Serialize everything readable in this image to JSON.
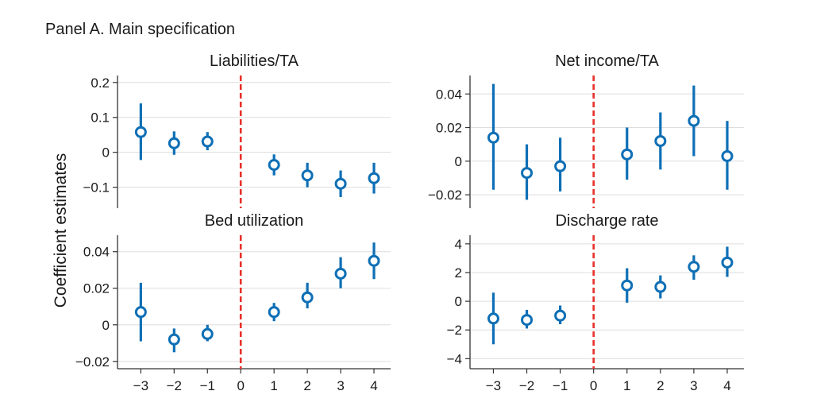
{
  "panel_title": "Panel A. Main specification",
  "y_axis_label": "Coefficient estimates",
  "colors": {
    "marker": "#0e6fb5",
    "threshold": "#e8302a",
    "grid": "#dddddd",
    "axis": "#333333"
  },
  "chart_data": [
    {
      "type": "scatter",
      "title": "Liabilities/TA",
      "x": [
        -3,
        -2,
        -1,
        1,
        2,
        3,
        4
      ],
      "y": [
        0.058,
        0.026,
        0.031,
        -0.036,
        -0.066,
        -0.09,
        -0.074
      ],
      "ci_low": [
        -0.022,
        -0.007,
        0.006,
        -0.066,
        -0.1,
        -0.128,
        -0.118
      ],
      "ci_high": [
        0.14,
        0.06,
        0.058,
        -0.006,
        -0.03,
        -0.052,
        -0.03
      ],
      "yticks": [
        0.2,
        0.1,
        0,
        -0.1
      ],
      "yticklabels": [
        "0.2",
        "0.1",
        "0",
        "−0.1"
      ],
      "ylim": [
        -0.16,
        0.22
      ],
      "xlim": [
        -3.7,
        4.5
      ],
      "vline_x": 0,
      "grid": true
    },
    {
      "type": "scatter",
      "title": "Net income/TA",
      "x": [
        -3,
        -2,
        -1,
        1,
        2,
        3,
        4
      ],
      "y": [
        0.014,
        -0.007,
        -0.003,
        0.004,
        0.012,
        0.024,
        0.003
      ],
      "ci_low": [
        -0.017,
        -0.023,
        -0.018,
        -0.011,
        -0.005,
        0.003,
        -0.017
      ],
      "ci_high": [
        0.046,
        0.01,
        0.014,
        0.02,
        0.029,
        0.045,
        0.024
      ],
      "yticks": [
        0.04,
        0.02,
        0,
        -0.02
      ],
      "yticklabels": [
        "0.04",
        "0.02",
        "0",
        "−0.02"
      ],
      "ylim": [
        -0.028,
        0.051
      ],
      "xlim": [
        -3.7,
        4.5
      ],
      "vline_x": 0,
      "grid": true
    },
    {
      "type": "scatter",
      "title": "Bed utilization",
      "x": [
        -3,
        -2,
        -1,
        1,
        2,
        3,
        4
      ],
      "y": [
        0.007,
        -0.008,
        -0.005,
        0.007,
        0.015,
        0.028,
        0.035
      ],
      "ci_low": [
        -0.009,
        -0.015,
        -0.009,
        0.002,
        0.009,
        0.02,
        0.025
      ],
      "ci_high": [
        0.023,
        -0.002,
        0.0,
        0.012,
        0.023,
        0.037,
        0.045
      ],
      "yticks": [
        0.04,
        0.02,
        0,
        -0.02
      ],
      "yticklabels": [
        "0.04",
        "0.02",
        "0",
        "−0.02"
      ],
      "ylim": [
        -0.024,
        0.049
      ],
      "xlim": [
        -3.7,
        4.5
      ],
      "xticks": [
        -3,
        -2,
        -1,
        0,
        1,
        2,
        3,
        4
      ],
      "xticklabels": [
        "−3",
        "−2",
        "−1",
        "0",
        "1",
        "2",
        "3",
        "4"
      ],
      "vline_x": 0,
      "grid": true
    },
    {
      "type": "scatter",
      "title": "Discharge rate",
      "x": [
        -3,
        -2,
        -1,
        1,
        2,
        3,
        4
      ],
      "y": [
        -1.2,
        -1.3,
        -1.0,
        1.1,
        1.0,
        2.4,
        2.7
      ],
      "ci_low": [
        -3.0,
        -1.9,
        -1.6,
        -0.1,
        0.2,
        1.5,
        1.7
      ],
      "ci_high": [
        0.6,
        -0.6,
        -0.3,
        2.3,
        1.8,
        3.2,
        3.8
      ],
      "yticks": [
        4,
        2,
        0,
        -2,
        -4
      ],
      "yticklabels": [
        "4",
        "2",
        "0",
        "−2",
        "−4"
      ],
      "ylim": [
        -4.7,
        4.6
      ],
      "xlim": [
        -3.7,
        4.5
      ],
      "xticks": [
        -3,
        -2,
        -1,
        0,
        1,
        2,
        3,
        4
      ],
      "xticklabels": [
        "−3",
        "−2",
        "−1",
        "0",
        "1",
        "2",
        "3",
        "4"
      ],
      "vline_x": 0,
      "grid": true
    }
  ]
}
